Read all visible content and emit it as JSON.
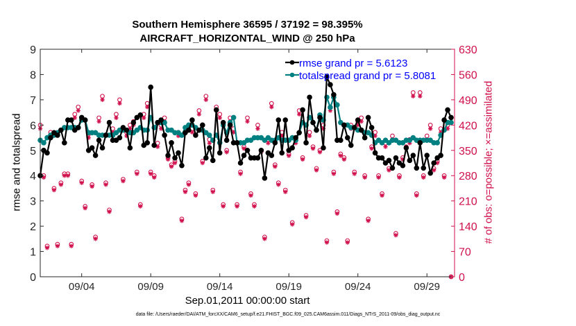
{
  "chart_data": {
    "type": "line",
    "title": "Southern Hemisphere 36595 / 37192 = 98.395%",
    "subtitle": "AIRCRAFT_HORIZONTAL_WIND @ 250 hPa",
    "xlabel": "Sep.01,2011 00:00:00 start",
    "ylabel": "rmse and totalspread",
    "ylabel_right": "# of obs: o=possible; ×=assimilated",
    "footnote": "data file: /Users/raeder/DAI/ATM_forcXX/CAM6_setup/f.e21.FHIST_BGC.f09_025.CAM6assim.011/Diags_NTrS_2011-09/obs_diag_output.nc",
    "xlim": [
      1,
      31
    ],
    "ylim": [
      0,
      9
    ],
    "ylim_right": [
      0,
      630
    ],
    "x_ticks": [
      4,
      9,
      14,
      19,
      24,
      29
    ],
    "x_tick_labels": [
      "09/04",
      "09/09",
      "09/14",
      "09/19",
      "09/24",
      "09/29"
    ],
    "y_ticks": [
      0,
      1,
      2,
      3,
      4,
      5,
      6,
      7,
      8,
      9
    ],
    "y_tick_labels": [
      "0",
      "1",
      "2",
      "3",
      "4",
      "5",
      "6",
      "7",
      "8",
      "9"
    ],
    "y_right_ticks": [
      0,
      70,
      140,
      210,
      280,
      350,
      420,
      490,
      560,
      630
    ],
    "y_right_tick_labels": [
      "0",
      "70",
      "140",
      "210",
      "280",
      "350",
      "420",
      "490",
      "560",
      "630"
    ],
    "legend": {
      "position": "top-right",
      "entries": [
        "rmse grand pr = 5.6123",
        "totalspread grand pr = 5.8081"
      ]
    },
    "colors": {
      "rmse": "#000000",
      "spread": "#008080",
      "obs": "#d0104c",
      "legend_text": "#0000ff"
    },
    "series": [
      {
        "name": "rmse",
        "x": [
          1.0,
          1.25,
          1.5,
          1.75,
          2.0,
          2.25,
          2.5,
          2.75,
          3.0,
          3.25,
          3.5,
          3.75,
          4.0,
          4.25,
          4.5,
          4.75,
          5.0,
          5.25,
          5.5,
          5.75,
          6.0,
          6.25,
          6.5,
          6.75,
          7.0,
          7.25,
          7.5,
          7.75,
          8.0,
          8.25,
          8.5,
          8.75,
          9.0,
          9.25,
          9.5,
          9.75,
          10.0,
          10.25,
          10.5,
          10.75,
          11.0,
          11.25,
          11.5,
          11.75,
          12.0,
          12.25,
          12.5,
          12.75,
          13.0,
          13.25,
          13.5,
          13.75,
          14.0,
          14.25,
          14.5,
          14.75,
          15.0,
          15.25,
          15.5,
          15.75,
          16.0,
          16.25,
          16.5,
          16.75,
          17.0,
          17.25,
          17.5,
          17.75,
          18.0,
          18.25,
          18.5,
          18.75,
          19.0,
          19.25,
          19.5,
          19.75,
          20.0,
          20.25,
          20.5,
          20.75,
          21.0,
          21.25,
          21.5,
          21.75,
          22.0,
          22.25,
          22.5,
          22.75,
          23.0,
          23.25,
          23.5,
          23.75,
          24.0,
          24.25,
          24.5,
          24.75,
          25.0,
          25.25,
          25.5,
          25.75,
          26.0,
          26.25,
          26.5,
          26.75,
          27.0,
          27.25,
          27.5,
          27.75,
          28.0,
          28.25,
          28.5,
          28.75,
          29.0,
          29.25,
          29.5,
          29.75,
          30.0,
          30.25,
          30.5,
          30.75
        ],
        "values": [
          4.0,
          5.0,
          4.9,
          5.5,
          5.7,
          5.6,
          5.8,
          5.3,
          6.2,
          6.2,
          5.8,
          5.9,
          6.3,
          6.2,
          5.0,
          5.1,
          4.8,
          5.4,
          5.1,
          5.6,
          6.1,
          5.4,
          5.4,
          5.5,
          5.9,
          5.8,
          5.1,
          6.1,
          6.3,
          6.4,
          5.2,
          5.3,
          7.5,
          5.2,
          6.1,
          6.2,
          5.6,
          4.8,
          5.3,
          4.7,
          4.9,
          4.4,
          5.7,
          5.8,
          6.2,
          5.6,
          5.8,
          6.0,
          4.7,
          5.1,
          4.6,
          6.6,
          4.9,
          6.1,
          5.4,
          6.0,
          5.3,
          5.3,
          4.5,
          4.8,
          5.0,
          4.7,
          4.7,
          4.7,
          5.0,
          3.9,
          4.9,
          4.8,
          5.3,
          6.2,
          4.9,
          6.2,
          5.0,
          5.1,
          5.5,
          5.7,
          6.6,
          5.3,
          7.1,
          6.1,
          5.8,
          6.3,
          5.1,
          7.9,
          7.6,
          7.2,
          5.4,
          5.4,
          6.0,
          5.5,
          5.2,
          5.9,
          6.2,
          5.8,
          5.5,
          6.3,
          5.9,
          4.9,
          4.7,
          4.7,
          4.5,
          4.6,
          4.3,
          4.7,
          4.5,
          4.4,
          5.1,
          4.6,
          4.8,
          4.3,
          5.3,
          4.3,
          4.8,
          4.1,
          4.5,
          4.7,
          4.8,
          6.2,
          6.6,
          6.3
        ]
      },
      {
        "name": "totalspread",
        "x": [
          1.0,
          1.25,
          1.5,
          1.75,
          2.0,
          2.25,
          2.5,
          2.75,
          3.0,
          3.25,
          3.5,
          3.75,
          4.0,
          4.25,
          4.5,
          4.75,
          5.0,
          5.25,
          5.5,
          5.75,
          6.0,
          6.25,
          6.5,
          6.75,
          7.0,
          7.25,
          7.5,
          7.75,
          8.0,
          8.25,
          8.5,
          8.75,
          9.0,
          9.25,
          9.5,
          9.75,
          10.0,
          10.25,
          10.5,
          10.75,
          11.0,
          11.25,
          11.5,
          11.75,
          12.0,
          12.25,
          12.5,
          12.75,
          13.0,
          13.25,
          13.5,
          13.75,
          14.0,
          14.25,
          14.5,
          14.75,
          15.0,
          15.25,
          15.5,
          15.75,
          16.0,
          16.25,
          16.5,
          16.75,
          17.0,
          17.25,
          17.5,
          17.75,
          18.0,
          18.25,
          18.5,
          18.75,
          19.0,
          19.25,
          19.5,
          19.75,
          20.0,
          20.25,
          20.5,
          20.75,
          21.0,
          21.25,
          21.5,
          21.75,
          22.0,
          22.25,
          22.5,
          22.75,
          23.0,
          23.25,
          23.5,
          23.75,
          24.0,
          24.25,
          24.5,
          24.75,
          25.0,
          25.25,
          25.5,
          25.75,
          26.0,
          26.25,
          26.5,
          26.75,
          27.0,
          27.25,
          27.5,
          27.75,
          28.0,
          28.25,
          28.5,
          28.75,
          29.0,
          29.25,
          29.5,
          29.75,
          30.0,
          30.25,
          30.5,
          30.75
        ],
        "values": [
          5.4,
          5.3,
          5.5,
          5.6,
          5.6,
          5.7,
          5.8,
          5.9,
          5.9,
          5.9,
          5.9,
          5.9,
          6.2,
          6.2,
          5.7,
          5.7,
          5.7,
          5.6,
          5.6,
          5.6,
          5.6,
          5.6,
          5.7,
          5.8,
          5.8,
          5.8,
          5.7,
          5.7,
          5.8,
          5.9,
          5.8,
          5.8,
          6.3,
          5.9,
          6.1,
          6.1,
          6.1,
          5.8,
          5.8,
          5.7,
          5.7,
          5.6,
          5.9,
          6.0,
          6.0,
          5.9,
          5.8,
          5.8,
          5.7,
          5.6,
          5.4,
          5.6,
          5.3,
          6.0,
          5.7,
          6.1,
          6.3,
          5.3,
          5.3,
          5.3,
          5.4,
          5.4,
          5.5,
          5.5,
          5.5,
          5.4,
          5.5,
          5.4,
          5.4,
          5.5,
          5.4,
          5.4,
          5.4,
          5.5,
          5.4,
          5.7,
          6.1,
          6.0,
          6.3,
          6.1,
          5.8,
          6.4,
          6.2,
          7.1,
          6.7,
          7.1,
          6.8,
          6.1,
          6.0,
          6.0,
          5.9,
          5.9,
          5.8,
          5.8,
          5.7,
          5.7,
          5.6,
          5.3,
          5.4,
          5.3,
          5.4,
          5.3,
          5.4,
          5.4,
          5.3,
          5.3,
          5.4,
          5.4,
          5.5,
          5.4,
          5.4,
          5.4,
          5.4,
          5.4,
          5.3,
          5.3,
          5.6,
          5.8,
          6.1,
          6.1
        ]
      },
      {
        "name": "obs_possible",
        "axis": "right",
        "x": [
          1.0,
          1.25,
          1.5,
          1.75,
          2.0,
          2.25,
          2.5,
          2.75,
          3.0,
          3.25,
          3.5,
          3.75,
          4.0,
          4.25,
          4.5,
          4.75,
          5.0,
          5.25,
          5.5,
          5.75,
          6.0,
          6.25,
          6.5,
          6.75,
          7.0,
          7.25,
          7.5,
          7.75,
          8.0,
          8.25,
          8.5,
          8.75,
          9.0,
          9.25,
          9.5,
          9.75,
          10.0,
          10.25,
          10.5,
          10.75,
          11.0,
          11.25,
          11.5,
          11.75,
          12.0,
          12.25,
          12.5,
          12.75,
          13.0,
          13.25,
          13.5,
          13.75,
          14.0,
          14.25,
          14.5,
          14.75,
          15.0,
          15.25,
          15.5,
          15.75,
          16.0,
          16.25,
          16.5,
          16.75,
          17.0,
          17.25,
          17.5,
          17.75,
          18.0,
          18.25,
          18.5,
          18.75,
          19.0,
          19.25,
          19.5,
          19.75,
          20.0,
          20.25,
          20.5,
          20.75,
          21.0,
          21.25,
          21.5,
          21.75,
          22.0,
          22.25,
          22.5,
          22.75,
          23.0,
          23.25,
          23.5,
          23.75,
          24.0,
          24.25,
          24.5,
          24.75,
          25.0,
          25.25,
          25.5,
          25.75,
          26.0,
          26.25,
          26.5,
          26.75,
          27.0,
          27.25,
          27.5,
          27.75,
          28.0,
          28.25,
          28.5,
          28.75,
          29.0,
          29.25,
          29.5,
          29.75,
          30.0,
          30.25,
          30.5,
          30.75
        ],
        "values": [
          420,
          280,
          85,
          400,
          245,
          90,
          260,
          285,
          285,
          90,
          450,
          470,
          265,
          195,
          395,
          255,
          110,
          440,
          500,
          260,
          185,
          410,
          450,
          490,
          270,
          400,
          420,
          430,
          290,
          200,
          450,
          480,
          290,
          280,
          370,
          420,
          440,
          330,
          310,
          320,
          400,
          160,
          240,
          260,
          410,
          230,
          460,
          320,
          500,
          380,
          240,
          470,
          450,
          200,
          350,
          440,
          410,
          200,
          290,
          360,
          440,
          230,
          200,
          420,
          350,
          110,
          380,
          480,
          310,
          260,
          400,
          240,
          340,
          150,
          380,
          460,
          330,
          170,
          400,
          360,
          300,
          350,
          420,
          100,
          470,
          290,
          180,
          340,
          330,
          100,
          420,
          290,
          430,
          440,
          280,
          160,
          360,
          400,
          280,
          230,
          370,
          300,
          390,
          120,
          280,
          330,
          360,
          380,
          510,
          230,
          510,
          280,
          390,
          420,
          300,
          320,
          410,
          280,
          420,
          0
        ]
      },
      {
        "name": "obs_assimilated",
        "axis": "right",
        "x": [
          1.0,
          1.25,
          1.5,
          1.75,
          2.0,
          2.25,
          2.5,
          2.75,
          3.0,
          3.25,
          3.5,
          3.75,
          4.0,
          4.25,
          4.5,
          4.75,
          5.0,
          5.25,
          5.5,
          5.75,
          6.0,
          6.25,
          6.5,
          6.75,
          7.0,
          7.25,
          7.5,
          7.75,
          8.0,
          8.25,
          8.5,
          8.75,
          9.0,
          9.25,
          9.5,
          9.75,
          10.0,
          10.25,
          10.5,
          10.75,
          11.0,
          11.25,
          11.5,
          11.75,
          12.0,
          12.25,
          12.5,
          12.75,
          13.0,
          13.25,
          13.5,
          13.75,
          14.0,
          14.25,
          14.5,
          14.75,
          15.0,
          15.25,
          15.5,
          15.75,
          16.0,
          16.25,
          16.5,
          16.75,
          17.0,
          17.25,
          17.5,
          17.75,
          18.0,
          18.25,
          18.5,
          18.75,
          19.0,
          19.25,
          19.5,
          19.75,
          20.0,
          20.25,
          20.5,
          20.75,
          21.0,
          21.25,
          21.5,
          21.75,
          22.0,
          22.25,
          22.5,
          22.75,
          23.0,
          23.25,
          23.5,
          23.75,
          24.0,
          24.25,
          24.5,
          24.75,
          25.0,
          25.25,
          25.5,
          25.75,
          26.0,
          26.25,
          26.5,
          26.75,
          27.0,
          27.25,
          27.5,
          27.75,
          28.0,
          28.25,
          28.5,
          28.75,
          29.0,
          29.25,
          29.5,
          29.75,
          30.0,
          30.25,
          30.5,
          30.75
        ],
        "values": [
          410,
          275,
          80,
          390,
          240,
          85,
          255,
          280,
          280,
          85,
          440,
          460,
          260,
          190,
          385,
          250,
          105,
          430,
          490,
          255,
          180,
          400,
          440,
          480,
          265,
          390,
          410,
          420,
          285,
          195,
          440,
          470,
          285,
          275,
          360,
          410,
          430,
          325,
          305,
          315,
          390,
          155,
          235,
          255,
          400,
          225,
          450,
          315,
          490,
          370,
          235,
          460,
          440,
          195,
          345,
          430,
          400,
          195,
          285,
          355,
          430,
          225,
          195,
          410,
          345,
          105,
          370,
          470,
          305,
          255,
          390,
          235,
          335,
          145,
          370,
          450,
          325,
          165,
          390,
          355,
          295,
          345,
          410,
          95,
          460,
          285,
          175,
          335,
          325,
          95,
          410,
          285,
          420,
          430,
          275,
          155,
          355,
          390,
          275,
          225,
          360,
          295,
          380,
          115,
          275,
          325,
          355,
          370,
          500,
          225,
          500,
          275,
          380,
          410,
          295,
          315,
          400,
          275,
          410,
          0
        ]
      }
    ]
  }
}
